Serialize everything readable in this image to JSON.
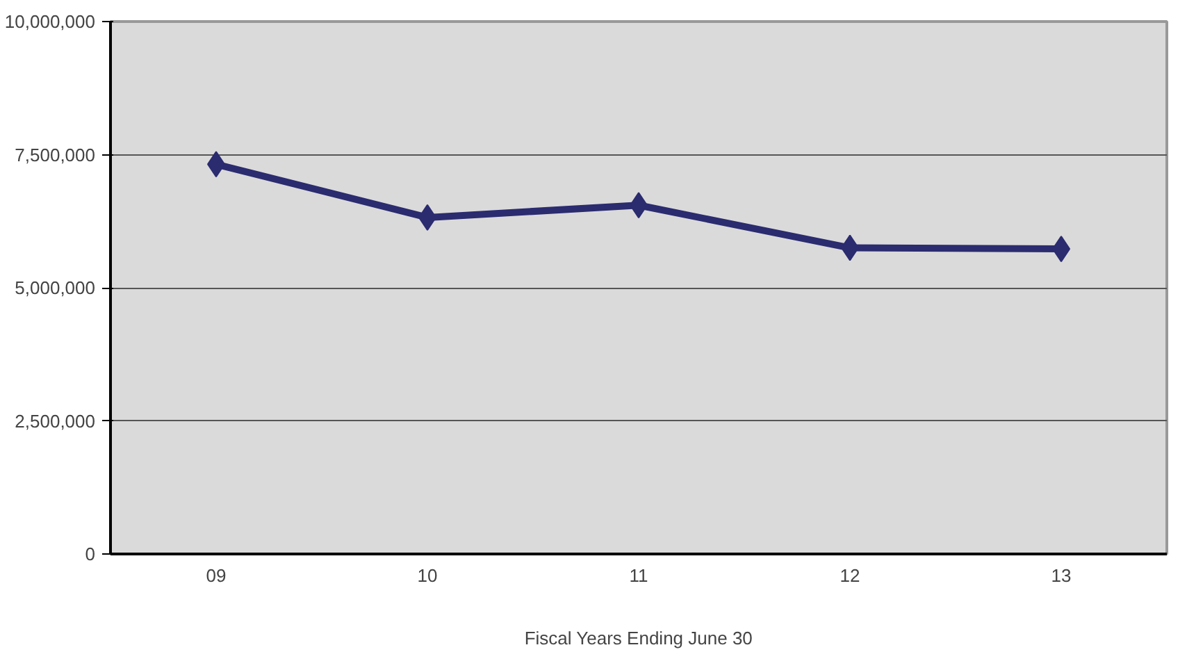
{
  "chart_data": {
    "type": "line",
    "xlabel": "Fiscal Years Ending June 30",
    "categories": [
      "09",
      "10",
      "11",
      "12",
      "13"
    ],
    "series": [
      {
        "color": "#2b2b70",
        "values": [
          7320000,
          6320000,
          6550000,
          5750000,
          5730000
        ]
      }
    ],
    "ylim": [
      0,
      10000000
    ],
    "yticks": [
      {
        "value": 0,
        "label": "0"
      },
      {
        "value": 2500000,
        "label": "2,500,000"
      },
      {
        "value": 5000000,
        "label": "5,000,000"
      },
      {
        "value": 7500000,
        "label": "7,500,000"
      },
      {
        "value": 10000000,
        "label": "10,000,000"
      }
    ],
    "grid": "y",
    "marker": "diamond",
    "line_style": "solid"
  }
}
